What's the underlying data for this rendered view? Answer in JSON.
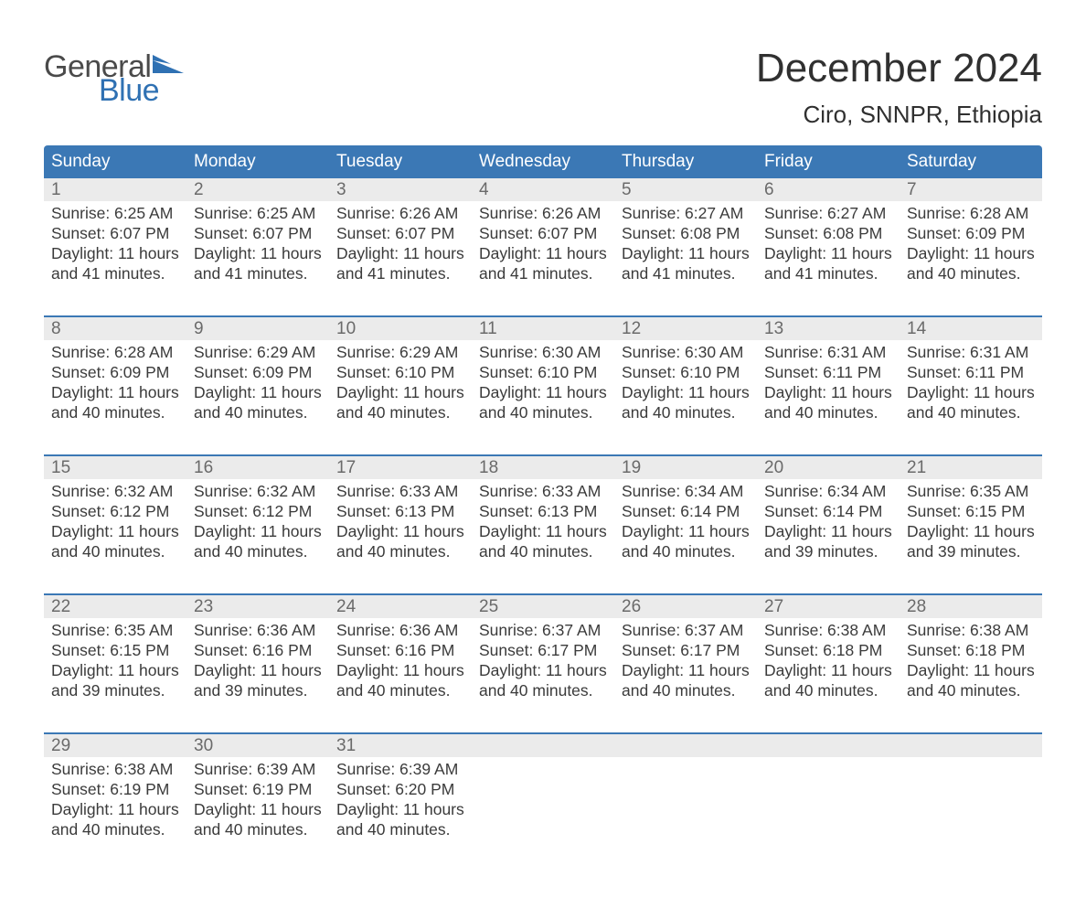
{
  "brand": {
    "word1": "General",
    "word2": "Blue",
    "flag_color": "#2f71b3",
    "word1_color": "#4a4a4a"
  },
  "title": "December 2024",
  "location": "Ciro, SNNPR, Ethiopia",
  "colors": {
    "header_bg": "#3b78b5",
    "header_text": "#ffffff",
    "daynum_bg": "#ebebeb",
    "daynum_text": "#6a6a6a",
    "body_text": "#3b3b3b",
    "week_divider": "#3b78b5",
    "page_bg": "#ffffff"
  },
  "typography": {
    "title_fontsize": 44,
    "location_fontsize": 26,
    "dow_fontsize": 19,
    "daynum_fontsize": 19,
    "body_fontsize": 17.5,
    "logo_fontsize": 34
  },
  "days_of_week": [
    "Sunday",
    "Monday",
    "Tuesday",
    "Wednesday",
    "Thursday",
    "Friday",
    "Saturday"
  ],
  "weeks": [
    [
      {
        "n": "1",
        "sunrise": "Sunrise: 6:25 AM",
        "sunset": "Sunset: 6:07 PM",
        "d1": "Daylight: 11 hours",
        "d2": "and 41 minutes."
      },
      {
        "n": "2",
        "sunrise": "Sunrise: 6:25 AM",
        "sunset": "Sunset: 6:07 PM",
        "d1": "Daylight: 11 hours",
        "d2": "and 41 minutes."
      },
      {
        "n": "3",
        "sunrise": "Sunrise: 6:26 AM",
        "sunset": "Sunset: 6:07 PM",
        "d1": "Daylight: 11 hours",
        "d2": "and 41 minutes."
      },
      {
        "n": "4",
        "sunrise": "Sunrise: 6:26 AM",
        "sunset": "Sunset: 6:07 PM",
        "d1": "Daylight: 11 hours",
        "d2": "and 41 minutes."
      },
      {
        "n": "5",
        "sunrise": "Sunrise: 6:27 AM",
        "sunset": "Sunset: 6:08 PM",
        "d1": "Daylight: 11 hours",
        "d2": "and 41 minutes."
      },
      {
        "n": "6",
        "sunrise": "Sunrise: 6:27 AM",
        "sunset": "Sunset: 6:08 PM",
        "d1": "Daylight: 11 hours",
        "d2": "and 41 minutes."
      },
      {
        "n": "7",
        "sunrise": "Sunrise: 6:28 AM",
        "sunset": "Sunset: 6:09 PM",
        "d1": "Daylight: 11 hours",
        "d2": "and 40 minutes."
      }
    ],
    [
      {
        "n": "8",
        "sunrise": "Sunrise: 6:28 AM",
        "sunset": "Sunset: 6:09 PM",
        "d1": "Daylight: 11 hours",
        "d2": "and 40 minutes."
      },
      {
        "n": "9",
        "sunrise": "Sunrise: 6:29 AM",
        "sunset": "Sunset: 6:09 PM",
        "d1": "Daylight: 11 hours",
        "d2": "and 40 minutes."
      },
      {
        "n": "10",
        "sunrise": "Sunrise: 6:29 AM",
        "sunset": "Sunset: 6:10 PM",
        "d1": "Daylight: 11 hours",
        "d2": "and 40 minutes."
      },
      {
        "n": "11",
        "sunrise": "Sunrise: 6:30 AM",
        "sunset": "Sunset: 6:10 PM",
        "d1": "Daylight: 11 hours",
        "d2": "and 40 minutes."
      },
      {
        "n": "12",
        "sunrise": "Sunrise: 6:30 AM",
        "sunset": "Sunset: 6:10 PM",
        "d1": "Daylight: 11 hours",
        "d2": "and 40 minutes."
      },
      {
        "n": "13",
        "sunrise": "Sunrise: 6:31 AM",
        "sunset": "Sunset: 6:11 PM",
        "d1": "Daylight: 11 hours",
        "d2": "and 40 minutes."
      },
      {
        "n": "14",
        "sunrise": "Sunrise: 6:31 AM",
        "sunset": "Sunset: 6:11 PM",
        "d1": "Daylight: 11 hours",
        "d2": "and 40 minutes."
      }
    ],
    [
      {
        "n": "15",
        "sunrise": "Sunrise: 6:32 AM",
        "sunset": "Sunset: 6:12 PM",
        "d1": "Daylight: 11 hours",
        "d2": "and 40 minutes."
      },
      {
        "n": "16",
        "sunrise": "Sunrise: 6:32 AM",
        "sunset": "Sunset: 6:12 PM",
        "d1": "Daylight: 11 hours",
        "d2": "and 40 minutes."
      },
      {
        "n": "17",
        "sunrise": "Sunrise: 6:33 AM",
        "sunset": "Sunset: 6:13 PM",
        "d1": "Daylight: 11 hours",
        "d2": "and 40 minutes."
      },
      {
        "n": "18",
        "sunrise": "Sunrise: 6:33 AM",
        "sunset": "Sunset: 6:13 PM",
        "d1": "Daylight: 11 hours",
        "d2": "and 40 minutes."
      },
      {
        "n": "19",
        "sunrise": "Sunrise: 6:34 AM",
        "sunset": "Sunset: 6:14 PM",
        "d1": "Daylight: 11 hours",
        "d2": "and 40 minutes."
      },
      {
        "n": "20",
        "sunrise": "Sunrise: 6:34 AM",
        "sunset": "Sunset: 6:14 PM",
        "d1": "Daylight: 11 hours",
        "d2": "and 39 minutes."
      },
      {
        "n": "21",
        "sunrise": "Sunrise: 6:35 AM",
        "sunset": "Sunset: 6:15 PM",
        "d1": "Daylight: 11 hours",
        "d2": "and 39 minutes."
      }
    ],
    [
      {
        "n": "22",
        "sunrise": "Sunrise: 6:35 AM",
        "sunset": "Sunset: 6:15 PM",
        "d1": "Daylight: 11 hours",
        "d2": "and 39 minutes."
      },
      {
        "n": "23",
        "sunrise": "Sunrise: 6:36 AM",
        "sunset": "Sunset: 6:16 PM",
        "d1": "Daylight: 11 hours",
        "d2": "and 39 minutes."
      },
      {
        "n": "24",
        "sunrise": "Sunrise: 6:36 AM",
        "sunset": "Sunset: 6:16 PM",
        "d1": "Daylight: 11 hours",
        "d2": "and 40 minutes."
      },
      {
        "n": "25",
        "sunrise": "Sunrise: 6:37 AM",
        "sunset": "Sunset: 6:17 PM",
        "d1": "Daylight: 11 hours",
        "d2": "and 40 minutes."
      },
      {
        "n": "26",
        "sunrise": "Sunrise: 6:37 AM",
        "sunset": "Sunset: 6:17 PM",
        "d1": "Daylight: 11 hours",
        "d2": "and 40 minutes."
      },
      {
        "n": "27",
        "sunrise": "Sunrise: 6:38 AM",
        "sunset": "Sunset: 6:18 PM",
        "d1": "Daylight: 11 hours",
        "d2": "and 40 minutes."
      },
      {
        "n": "28",
        "sunrise": "Sunrise: 6:38 AM",
        "sunset": "Sunset: 6:18 PM",
        "d1": "Daylight: 11 hours",
        "d2": "and 40 minutes."
      }
    ],
    [
      {
        "n": "29",
        "sunrise": "Sunrise: 6:38 AM",
        "sunset": "Sunset: 6:19 PM",
        "d1": "Daylight: 11 hours",
        "d2": "and 40 minutes."
      },
      {
        "n": "30",
        "sunrise": "Sunrise: 6:39 AM",
        "sunset": "Sunset: 6:19 PM",
        "d1": "Daylight: 11 hours",
        "d2": "and 40 minutes."
      },
      {
        "n": "31",
        "sunrise": "Sunrise: 6:39 AM",
        "sunset": "Sunset: 6:20 PM",
        "d1": "Daylight: 11 hours",
        "d2": "and 40 minutes."
      },
      {
        "empty": true
      },
      {
        "empty": true
      },
      {
        "empty": true
      },
      {
        "empty": true
      }
    ]
  ]
}
